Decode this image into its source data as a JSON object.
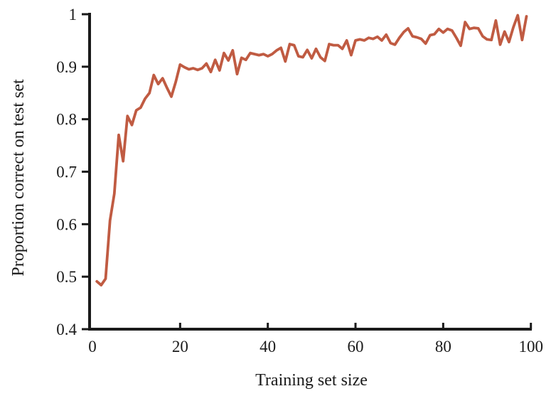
{
  "chart_data": {
    "type": "line",
    "title": "",
    "xlabel": "Training set size",
    "ylabel": "Proportion correct on test set",
    "xlim": [
      0,
      100
    ],
    "ylim": [
      0.4,
      1.0
    ],
    "grid": false,
    "legend": null,
    "line_color": "#c05b42",
    "axis_color": "#1a1a1a",
    "xticks": {
      "values": [
        0,
        20,
        40,
        60,
        80,
        100
      ],
      "labels": [
        "0",
        "20",
        "40",
        "60",
        "80",
        "100"
      ]
    },
    "yticks": {
      "values": [
        0.4,
        0.5,
        0.6,
        0.7,
        0.8,
        0.9,
        1.0
      ],
      "labels": [
        "0.4",
        "0.5",
        "0.6",
        "0.7",
        "0.8",
        "0.9",
        "1"
      ]
    },
    "series": [
      {
        "name": "proportion-correct-on-test-set",
        "x": [
          1,
          2,
          3,
          4,
          5,
          6,
          7,
          8,
          9,
          10,
          11,
          12,
          13,
          14,
          15,
          16,
          17,
          18,
          19,
          20,
          21,
          22,
          23,
          24,
          25,
          26,
          27,
          28,
          29,
          30,
          31,
          32,
          33,
          34,
          35,
          36,
          37,
          38,
          39,
          40,
          41,
          42,
          43,
          44,
          45,
          46,
          47,
          48,
          49,
          50,
          51,
          52,
          53,
          54,
          55,
          56,
          57,
          58,
          59,
          60,
          61,
          62,
          63,
          64,
          65,
          66,
          67,
          68,
          69,
          70,
          71,
          72,
          73,
          74,
          75,
          76,
          77,
          78,
          79,
          80,
          81,
          82,
          83,
          84,
          85,
          86,
          87,
          88,
          89,
          90,
          91,
          92,
          93,
          94,
          95,
          96,
          97,
          98,
          99
        ],
        "y": [
          0.491,
          0.484,
          0.496,
          0.607,
          0.658,
          0.77,
          0.72,
          0.806,
          0.789,
          0.817,
          0.822,
          0.839,
          0.85,
          0.884,
          0.867,
          0.878,
          0.86,
          0.843,
          0.871,
          0.904,
          0.899,
          0.895,
          0.897,
          0.894,
          0.897,
          0.906,
          0.89,
          0.913,
          0.893,
          0.926,
          0.912,
          0.931,
          0.886,
          0.917,
          0.913,
          0.926,
          0.924,
          0.922,
          0.924,
          0.92,
          0.924,
          0.931,
          0.936,
          0.91,
          0.943,
          0.941,
          0.92,
          0.918,
          0.932,
          0.916,
          0.934,
          0.918,
          0.911,
          0.943,
          0.941,
          0.941,
          0.934,
          0.95,
          0.922,
          0.95,
          0.952,
          0.95,
          0.955,
          0.953,
          0.957,
          0.95,
          0.961,
          0.945,
          0.942,
          0.955,
          0.966,
          0.973,
          0.958,
          0.956,
          0.953,
          0.944,
          0.96,
          0.962,
          0.972,
          0.965,
          0.972,
          0.969,
          0.955,
          0.94,
          0.985,
          0.972,
          0.974,
          0.973,
          0.958,
          0.952,
          0.951,
          0.988,
          0.942,
          0.967,
          0.947,
          0.975,
          0.998,
          0.951,
          0.996
        ]
      }
    ]
  }
}
